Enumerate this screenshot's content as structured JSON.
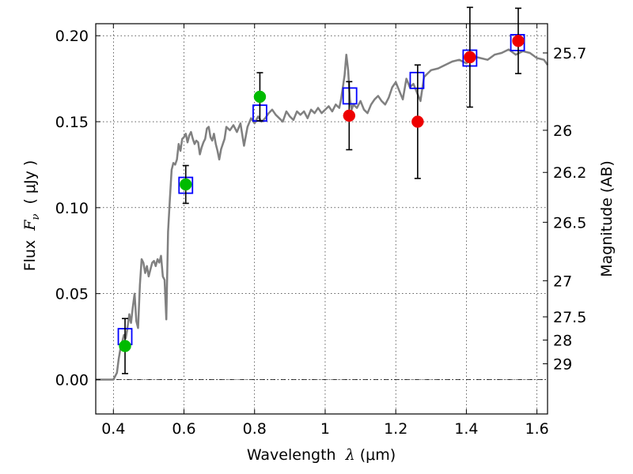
{
  "chart_data": {
    "type": "scatter",
    "xlabel_prefix": "Wavelength  ",
    "xlabel_symbol": "λ",
    "xlabel_unit": " (μm)",
    "ylabel_prefix": "Flux  ",
    "ylabel_symbol": "F",
    "ylabel_subscript": "ν",
    "ylabel_unit": "  ( μJy )",
    "y2label": "Magnitude (AB)",
    "xlim": [
      0.35,
      1.63
    ],
    "ylim": [
      -0.02,
      0.207
    ],
    "x_ticks": [
      0.4,
      0.6,
      0.8,
      1.0,
      1.2,
      1.4,
      1.6
    ],
    "x_tick_labels": [
      "0.4",
      "0.6",
      "0.8",
      "1",
      "1.2",
      "1.4",
      "1.6"
    ],
    "y_ticks": [
      0.0,
      0.05,
      0.1,
      0.15,
      0.2
    ],
    "y_tick_labels": [
      "0.00",
      "0.05",
      "0.10",
      "0.15",
      "0.20"
    ],
    "mag_ticks": [
      {
        "label": "25.7",
        "flux": 0.19
      },
      {
        "label": "26",
        "flux": 0.145
      },
      {
        "label": "26.2",
        "flux": 0.1205
      },
      {
        "label": "26.5",
        "flux": 0.0915
      },
      {
        "label": "27",
        "flux": 0.0575
      },
      {
        "label": "27.5",
        "flux": 0.0365
      },
      {
        "label": "28",
        "flux": 0.023
      },
      {
        "label": "29",
        "flux": 0.0092
      }
    ],
    "series": [
      {
        "name": "model SED",
        "kind": "line",
        "color": "#808080",
        "x": [
          0.35,
          0.4,
          0.41,
          0.415,
          0.42,
          0.425,
          0.43,
          0.435,
          0.44,
          0.445,
          0.45,
          0.455,
          0.46,
          0.465,
          0.47,
          0.475,
          0.48,
          0.485,
          0.49,
          0.495,
          0.5,
          0.505,
          0.51,
          0.515,
          0.52,
          0.525,
          0.53,
          0.535,
          0.54,
          0.545,
          0.55,
          0.555,
          0.56,
          0.565,
          0.57,
          0.575,
          0.58,
          0.585,
          0.59,
          0.595,
          0.6,
          0.605,
          0.61,
          0.615,
          0.62,
          0.625,
          0.63,
          0.635,
          0.64,
          0.645,
          0.65,
          0.655,
          0.66,
          0.665,
          0.67,
          0.675,
          0.68,
          0.685,
          0.69,
          0.695,
          0.7,
          0.705,
          0.71,
          0.715,
          0.72,
          0.73,
          0.74,
          0.75,
          0.76,
          0.77,
          0.78,
          0.79,
          0.8,
          0.81,
          0.82,
          0.83,
          0.84,
          0.85,
          0.86,
          0.87,
          0.88,
          0.89,
          0.9,
          0.91,
          0.92,
          0.93,
          0.94,
          0.95,
          0.96,
          0.97,
          0.98,
          0.99,
          1.0,
          1.01,
          1.02,
          1.03,
          1.04,
          1.045,
          1.05,
          1.055,
          1.06,
          1.065,
          1.07,
          1.075,
          1.08,
          1.09,
          1.1,
          1.11,
          1.12,
          1.13,
          1.14,
          1.15,
          1.16,
          1.17,
          1.18,
          1.19,
          1.2,
          1.21,
          1.22,
          1.23,
          1.24,
          1.25,
          1.26,
          1.27,
          1.28,
          1.29,
          1.3,
          1.32,
          1.34,
          1.36,
          1.38,
          1.4,
          1.42,
          1.44,
          1.46,
          1.48,
          1.5,
          1.52,
          1.54,
          1.56,
          1.58,
          1.6,
          1.62,
          1.63
        ],
        "y": [
          0.0,
          0.0,
          0.004,
          0.012,
          0.018,
          0.022,
          0.026,
          0.024,
          0.03,
          0.038,
          0.033,
          0.042,
          0.05,
          0.034,
          0.03,
          0.055,
          0.07,
          0.068,
          0.062,
          0.066,
          0.06,
          0.064,
          0.068,
          0.069,
          0.066,
          0.07,
          0.068,
          0.072,
          0.06,
          0.058,
          0.035,
          0.086,
          0.105,
          0.122,
          0.126,
          0.125,
          0.128,
          0.137,
          0.133,
          0.14,
          0.141,
          0.143,
          0.138,
          0.142,
          0.144,
          0.14,
          0.137,
          0.139,
          0.138,
          0.131,
          0.135,
          0.138,
          0.14,
          0.146,
          0.147,
          0.141,
          0.139,
          0.143,
          0.137,
          0.133,
          0.128,
          0.134,
          0.137,
          0.14,
          0.147,
          0.145,
          0.148,
          0.144,
          0.149,
          0.136,
          0.147,
          0.152,
          0.149,
          0.153,
          0.15,
          0.152,
          0.155,
          0.157,
          0.154,
          0.152,
          0.15,
          0.156,
          0.153,
          0.151,
          0.156,
          0.154,
          0.156,
          0.152,
          0.157,
          0.155,
          0.158,
          0.155,
          0.157,
          0.159,
          0.156,
          0.16,
          0.158,
          0.163,
          0.17,
          0.177,
          0.189,
          0.18,
          0.163,
          0.157,
          0.16,
          0.158,
          0.162,
          0.157,
          0.155,
          0.16,
          0.163,
          0.165,
          0.162,
          0.16,
          0.164,
          0.17,
          0.173,
          0.168,
          0.163,
          0.175,
          0.17,
          0.172,
          0.167,
          0.162,
          0.176,
          0.178,
          0.18,
          0.181,
          0.183,
          0.185,
          0.186,
          0.184,
          0.188,
          0.187,
          0.186,
          0.189,
          0.19,
          0.192,
          0.189,
          0.191,
          0.19,
          0.187,
          0.186,
          0.183
        ]
      },
      {
        "name": "model photometry",
        "kind": "open-square",
        "color": "#0000ff",
        "x": [
          0.433,
          0.605,
          0.815,
          1.07,
          1.26,
          1.41,
          1.545
        ],
        "y": [
          0.025,
          0.113,
          0.155,
          0.165,
          0.174,
          0.187,
          0.196
        ]
      },
      {
        "name": "green observations",
        "kind": "filled-circle",
        "color": "#00bb00",
        "x": [
          0.433,
          0.605,
          0.815
        ],
        "y": [
          0.0195,
          0.1135,
          0.1645
        ],
        "yerr": [
          0.016,
          0.011,
          0.014
        ]
      },
      {
        "name": "red observations",
        "kind": "filled-circle",
        "color": "#ee0000",
        "x": [
          1.068,
          1.262,
          1.41,
          1.547
        ],
        "y": [
          0.1535,
          0.15,
          0.1875,
          0.197
        ],
        "yerr": [
          0.0198,
          0.033,
          0.029,
          0.019
        ]
      }
    ],
    "errorbar_color": "#000000",
    "grid": true,
    "dashdot_hline_at": 0.0
  }
}
